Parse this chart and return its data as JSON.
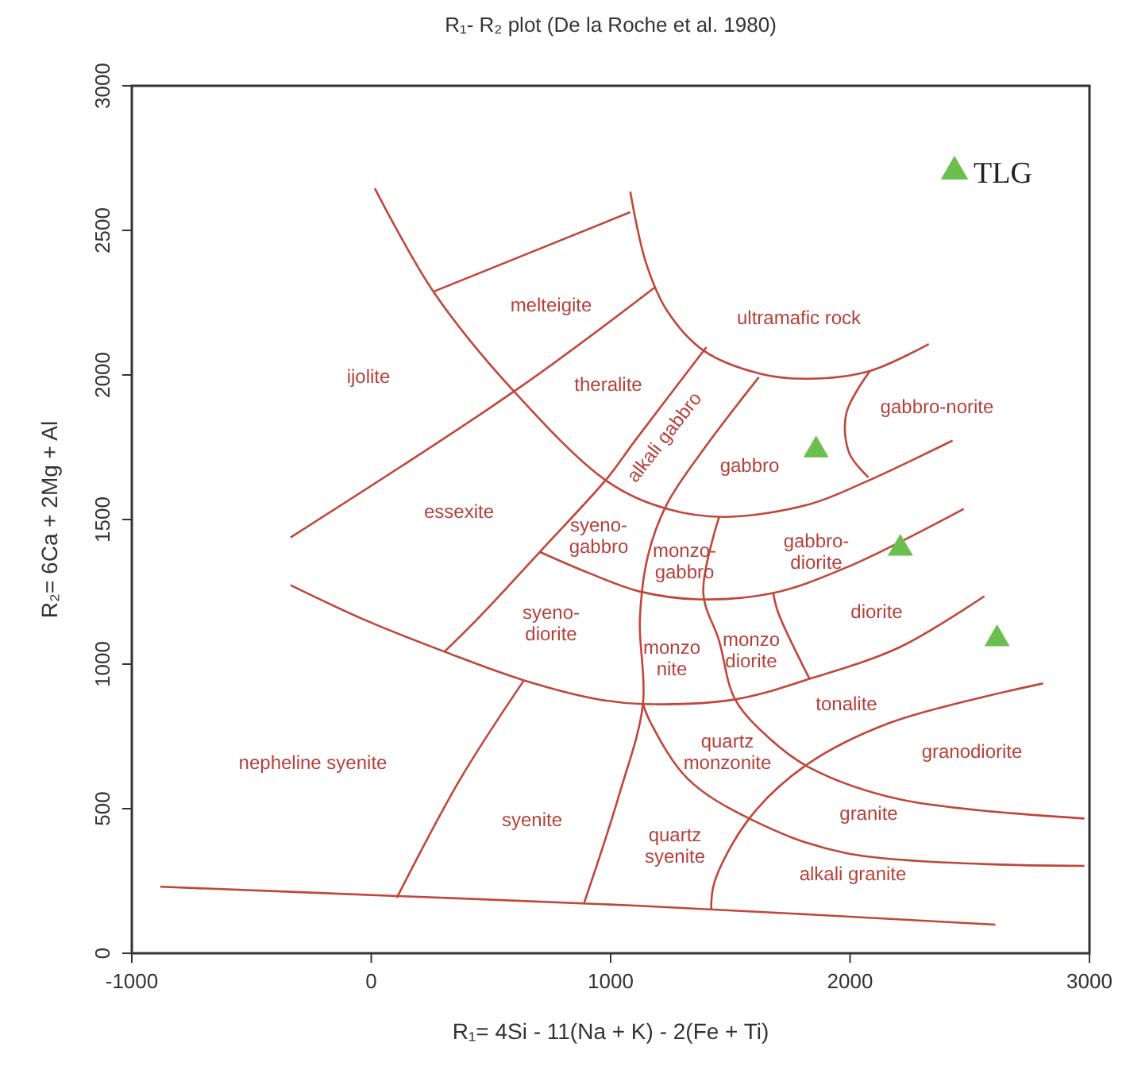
{
  "chart_data": {
    "type": "scatter",
    "title": "R₁- R₂ plot (De la Roche et al. 1980)",
    "xlabel": "R₁= 4Si - 11(Na + K) - 2(Fe + Ti)",
    "ylabel": "R₂= 6Ca + 2Mg + Al",
    "xlim": [
      -1000,
      3000
    ],
    "ylim": [
      0,
      3000
    ],
    "xticks": [
      -1000,
      0,
      1000,
      2000,
      3000
    ],
    "yticks": [
      0,
      500,
      1000,
      1500,
      2000,
      2500,
      3000
    ],
    "grid": false,
    "legend": "top right",
    "series": [
      {
        "type": "line",
        "color": "#c0463a",
        "x": [
          15,
          260,
          591,
          989,
          1235,
          1480,
          1831,
          2064,
          2428
        ],
        "values": [
          2645,
          2288,
          1948,
          1630,
          1537,
          1509,
          1553,
          1630,
          1773
        ]
      },
      {
        "type": "line",
        "color": "#c0463a",
        "x": [
          1082,
          1148,
          1235,
          1387,
          1632,
          1831,
          2083,
          2329
        ],
        "values": [
          2634,
          2387,
          2223,
          2085,
          2003,
          1987,
          2014,
          2107
        ]
      },
      {
        "type": "line",
        "color": "#c0463a",
        "x": [
          260,
          1082
        ],
        "values": [
          2288,
          2563
        ]
      },
      {
        "type": "line",
        "color": "#c0463a",
        "x": [
          -337,
          605,
          1188
        ],
        "values": [
          1438,
          1948,
          2305
        ]
      },
      {
        "type": "line",
        "color": "#c0463a",
        "x": [
          1400,
          1102,
          989,
          704,
          439,
          306
        ],
        "values": [
          2096,
          1773,
          1646,
          1388,
          1152,
          1043
        ]
      },
      {
        "type": "line",
        "color": "#c0463a",
        "x": [
          -337,
          -25,
          306,
          638,
          950,
          1135,
          1520,
          1831,
          2209,
          2561
        ],
        "values": [
          1273,
          1152,
          1043,
          944,
          878,
          862,
          878,
          949,
          1059,
          1235
        ]
      },
      {
        "type": "line",
        "color": "#c0463a",
        "x": [
          1619,
          1400,
          1235,
          1155,
          1122,
          1135,
          1036,
          890
        ],
        "values": [
          1992,
          1756,
          1553,
          1372,
          1152,
          862,
          549,
          176
        ]
      },
      {
        "type": "line",
        "color": "#c0463a",
        "x": [
          638,
          373,
          107
        ],
        "values": [
          944,
          604,
          192
        ]
      },
      {
        "type": "line",
        "color": "#c0463a",
        "x": [
          -881,
          107,
          1102,
          2607
        ],
        "values": [
          230,
          198,
          165,
          99
        ]
      },
      {
        "type": "line",
        "color": "#c0463a",
        "x": [
          2083,
          1984,
          1997,
          2077
        ],
        "values": [
          2014,
          1866,
          1729,
          1646
        ]
      },
      {
        "type": "line",
        "color": "#c0463a",
        "x": [
          704,
          903,
          1122,
          1367,
          1679,
          1984,
          2475
        ],
        "values": [
          1388,
          1317,
          1251,
          1224,
          1246,
          1334,
          1537
        ]
      },
      {
        "type": "line",
        "color": "#c0463a",
        "x": [
          1453,
          1387,
          1453,
          1520,
          1666,
          1831,
          2209,
          2979
        ],
        "values": [
          1509,
          1246,
          1081,
          878,
          741,
          642,
          532,
          466
        ]
      },
      {
        "type": "line",
        "color": "#c0463a",
        "x": [
          1679,
          1699,
          1831
        ],
        "values": [
          1246,
          1180,
          949
        ]
      },
      {
        "type": "line",
        "color": "#c0463a",
        "x": [
          1135,
          1168,
          1321,
          1579,
          1984,
          2979
        ],
        "values": [
          862,
          796,
          604,
          466,
          346,
          302
        ]
      },
      {
        "type": "line",
        "color": "#c0463a",
        "x": [
          1420,
          1434,
          1579,
          1812,
          2163,
          2806
        ],
        "values": [
          154,
          247,
          466,
          648,
          796,
          933
        ]
      },
      {
        "name": "TLG",
        "color": "#6cbf4e",
        "marker": "triangle",
        "x": [
          1858,
          2210,
          2614
        ],
        "values": [
          1740,
          1400,
          1087
        ]
      }
    ],
    "annotations": [
      "melteigite",
      "ijolite",
      "theralite",
      "ultramafic rock",
      "gabbro-norite",
      "alkali gabbro",
      "gabbro",
      "essexite",
      "syeno-\ngabbro",
      "monzo-\ngabbro",
      "gabbro-\ndiorite",
      "diorite",
      "syeno-\ndiorite",
      "monzo\nnite",
      "monzo\ndiorite",
      "tonalite",
      "quartz\nmonzonite",
      "granodiorite",
      "granite",
      "quartz\nsyenite",
      "alkali granite",
      "nepheline syenite",
      "syenite"
    ]
  }
}
